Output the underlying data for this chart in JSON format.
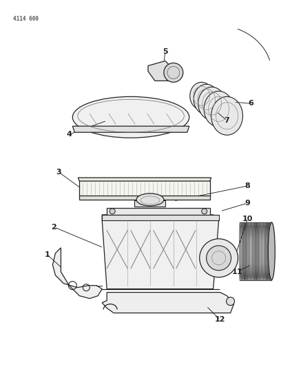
{
  "part_number": "4114 600",
  "background_color": "#ffffff",
  "line_color": "#222222",
  "fig_width": 4.08,
  "fig_height": 5.33,
  "dpi": 100
}
